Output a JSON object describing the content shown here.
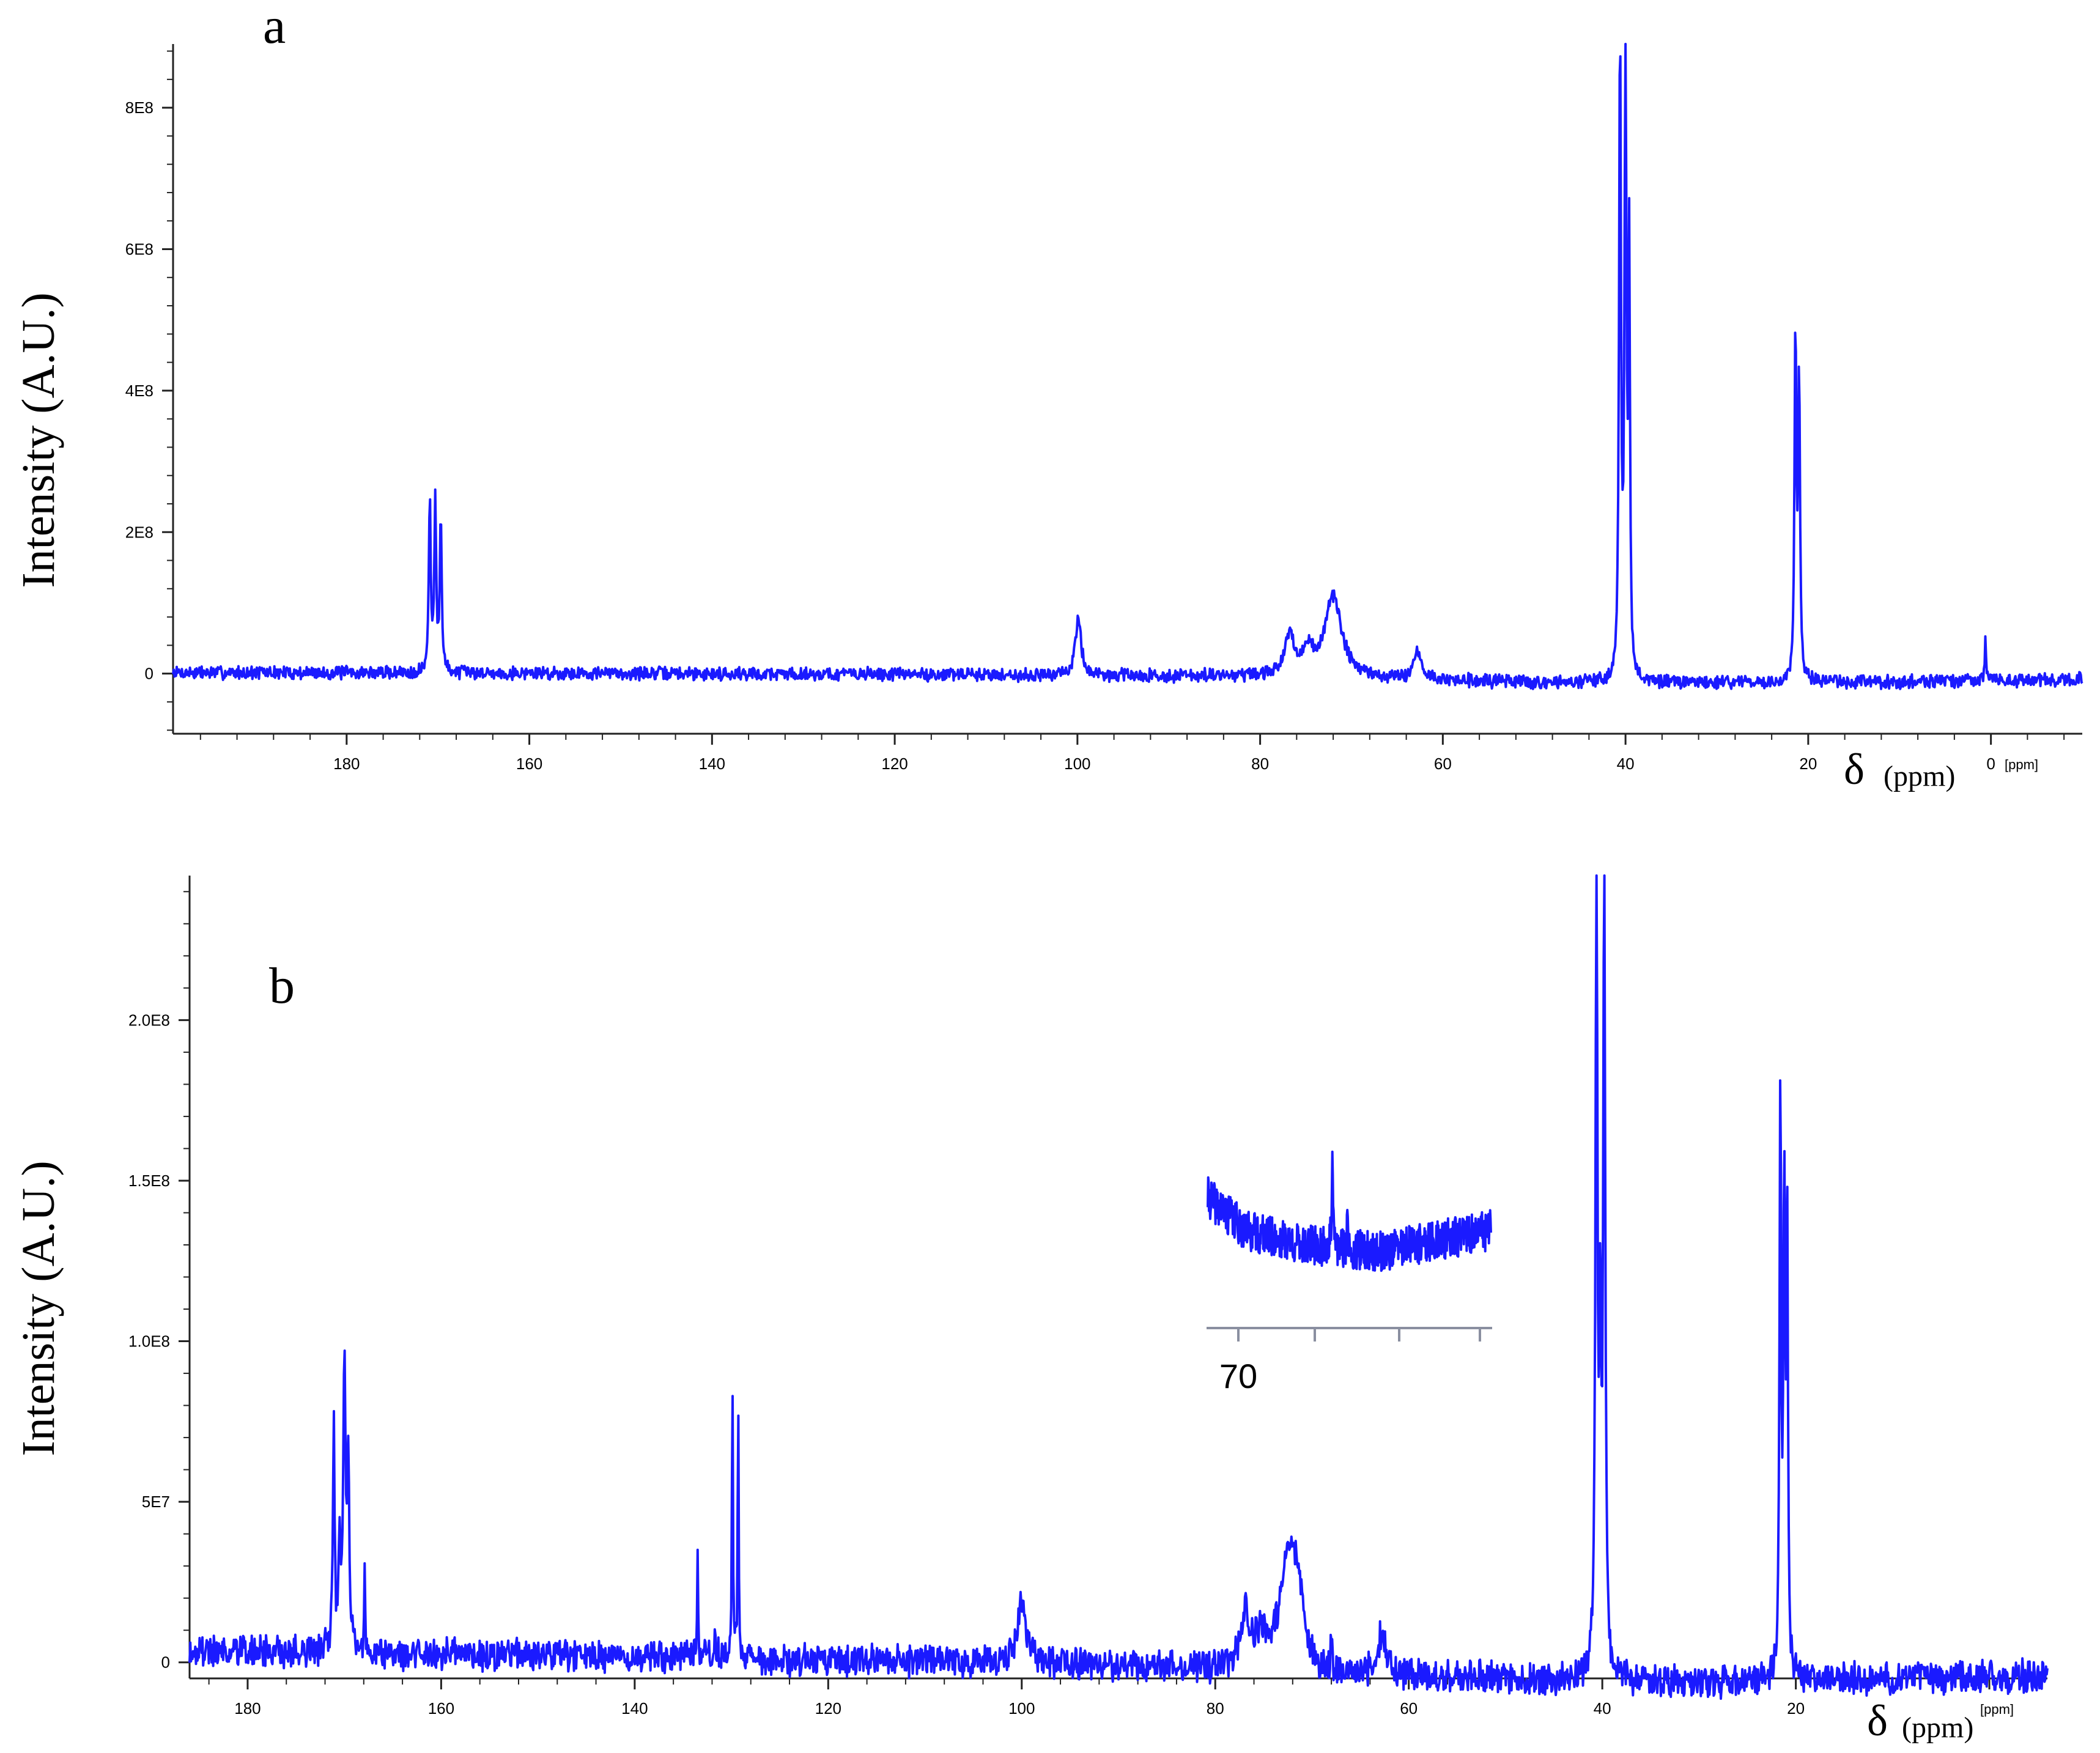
{
  "colors": {
    "spectrum": "#1a1aff",
    "axis": "#222222",
    "inset_highlight": "#cc1177"
  },
  "chart_data": [
    {
      "type": "line",
      "panel_label": "a",
      "ylabel": "Intensity (A.U.)",
      "xlabel": "δ",
      "xlabel_unit": "(ppm)",
      "x_unit_tick": "[ppm]",
      "x_reversed": true,
      "xlim": [
        199,
        -10
      ],
      "ylim": [
        -85000000.0,
        890000000.0
      ],
      "xticks": [
        180,
        160,
        140,
        120,
        100,
        80,
        60,
        40,
        20,
        0
      ],
      "xtick_labels": [
        "180",
        "160",
        "140",
        "120",
        "100",
        "80",
        "60",
        "40",
        "20",
        "0"
      ],
      "yticks": [
        0,
        200000000.0,
        400000000.0,
        600000000.0,
        800000000.0
      ],
      "ytick_labels": [
        "0",
        "2E8",
        "4E8",
        "6E8",
        "8E8"
      ],
      "baseline": [
        [
          199,
          1500000.0
        ],
        [
          170,
          1000000.0
        ],
        [
          150,
          500000.0
        ],
        [
          120,
          -1000000.0
        ],
        [
          85,
          -4000000.0
        ],
        [
          60,
          -10000000.0
        ],
        [
          50,
          -13000000.0
        ],
        [
          30,
          -13000000.0
        ],
        [
          10,
          -12000000.0
        ],
        [
          -10,
          -8000000.0
        ]
      ],
      "peaks": [
        {
          "x": 170.9,
          "y": 245000000.0,
          "w": 0.12
        },
        {
          "x": 170.3,
          "y": 240000000.0,
          "w": 0.12
        },
        {
          "x": 169.7,
          "y": 225000000.0,
          "w": 0.12
        },
        {
          "x": 99.9,
          "y": 85000000.0,
          "w": 0.35
        },
        {
          "x": 76.8,
          "y": 55000000.0,
          "w": 0.6
        },
        {
          "x": 74.8,
          "y": 35000000.0,
          "w": 0.7
        },
        {
          "x": 72.0,
          "y": 115000000.0,
          "w": 1.1
        },
        {
          "x": 62.8,
          "y": 40000000.0,
          "w": 0.5
        },
        {
          "x": 40.6,
          "y": 920000000.0,
          "w": 0.12
        },
        {
          "x": 40.0,
          "y": 920000000.0,
          "w": 0.12
        },
        {
          "x": 39.6,
          "y": 600000000.0,
          "w": 0.1
        },
        {
          "x": 21.4,
          "y": 495000000.0,
          "w": 0.12
        },
        {
          "x": 21.0,
          "y": 420000000.0,
          "w": 0.12
        },
        {
          "x": 0.6,
          "y": 55000000.0,
          "w": 0.08
        }
      ]
    },
    {
      "type": "line",
      "panel_label": "b",
      "ylabel": "Intensity (A.U.)",
      "xlabel": "δ",
      "xlabel_unit": "(ppm)",
      "x_unit_tick": "[ppm]",
      "x_reversed": true,
      "xlim": [
        186,
        -6
      ],
      "ylim": [
        -5000000.0,
        245000000.0
      ],
      "xticks": [
        180,
        160,
        140,
        120,
        100,
        80,
        60,
        40,
        20
      ],
      "xtick_labels": [
        "180",
        "160",
        "140",
        "120",
        "100",
        "80",
        "60",
        "40",
        "20"
      ],
      "yticks": [
        0,
        50000000.0,
        100000000.0,
        150000000.0,
        200000000.0
      ],
      "ytick_labels": [
        "0",
        "5E7",
        "1.0E8",
        "1.5E8",
        "2.0E8"
      ],
      "baseline": [
        [
          185,
          3500000.0
        ],
        [
          170,
          3000000.0
        ],
        [
          150,
          2000000.0
        ],
        [
          120,
          1000000.0
        ],
        [
          90,
          -1000000.0
        ],
        [
          70,
          -3000000.0
        ],
        [
          50,
          -5000000.0
        ],
        [
          30,
          -6000000.0
        ],
        [
          10,
          -5000000.0
        ],
        [
          -6,
          -4000000.0
        ]
      ],
      "peaks": [
        {
          "x": 171.1,
          "y": 73000000.0,
          "w": 0.1
        },
        {
          "x": 170.5,
          "y": 30000000.0,
          "w": 0.15
        },
        {
          "x": 170.0,
          "y": 88000000.0,
          "w": 0.15
        },
        {
          "x": 169.6,
          "y": 60000000.0,
          "w": 0.12
        },
        {
          "x": 167.9,
          "y": 24000000.0,
          "w": 0.06
        },
        {
          "x": 133.5,
          "y": 32000000.0,
          "w": 0.05
        },
        {
          "x": 131.7,
          "y": 10000000.0,
          "w": 0.06
        },
        {
          "x": 129.9,
          "y": 93000000.0,
          "w": 0.06
        },
        {
          "x": 129.3,
          "y": 83000000.0,
          "w": 0.06
        },
        {
          "x": 100.0,
          "y": 19000000.0,
          "w": 0.5
        },
        {
          "x": 76.9,
          "y": 16000000.0,
          "w": 0.6
        },
        {
          "x": 75.2,
          "y": 9000000.0,
          "w": 0.6
        },
        {
          "x": 72.6,
          "y": 33000000.0,
          "w": 0.9
        },
        {
          "x": 71.5,
          "y": 22000000.0,
          "w": 0.6
        },
        {
          "x": 68.0,
          "y": 12000000.0,
          "w": 0.06
        },
        {
          "x": 62.8,
          "y": 12000000.0,
          "w": 0.5
        },
        {
          "x": 40.6,
          "y": 260000000.0,
          "w": 0.12
        },
        {
          "x": 40.2,
          "y": 100000000.0,
          "w": 0.1
        },
        {
          "x": 39.8,
          "y": 260000000.0,
          "w": 0.12
        },
        {
          "x": 21.6,
          "y": 186000000.0,
          "w": 0.1
        },
        {
          "x": 21.2,
          "y": 144000000.0,
          "w": 0.1
        },
        {
          "x": 20.9,
          "y": 144000000.0,
          "w": 0.1
        }
      ],
      "inset": {
        "xtick_label": "70",
        "xlim": [
          71.5,
          64.0
        ],
        "xticks": [
          71,
          69,
          67,
          65,
          64.2
        ],
        "ylim": [
          -5000000.0,
          15000000.0
        ],
        "baseline": [
          [
            71.5,
            8500000.0
          ],
          [
            70.5,
            4000000.0
          ],
          [
            69,
            2000000.0
          ],
          [
            67,
            1000000.0
          ],
          [
            64,
            4000000.0
          ]
        ],
        "peaks": [
          {
            "x": 68.2,
            "y": 11000000.0,
            "w": 0.02
          },
          {
            "x": 67.8,
            "y": 4000000.0,
            "w": 0.02
          }
        ]
      }
    }
  ]
}
